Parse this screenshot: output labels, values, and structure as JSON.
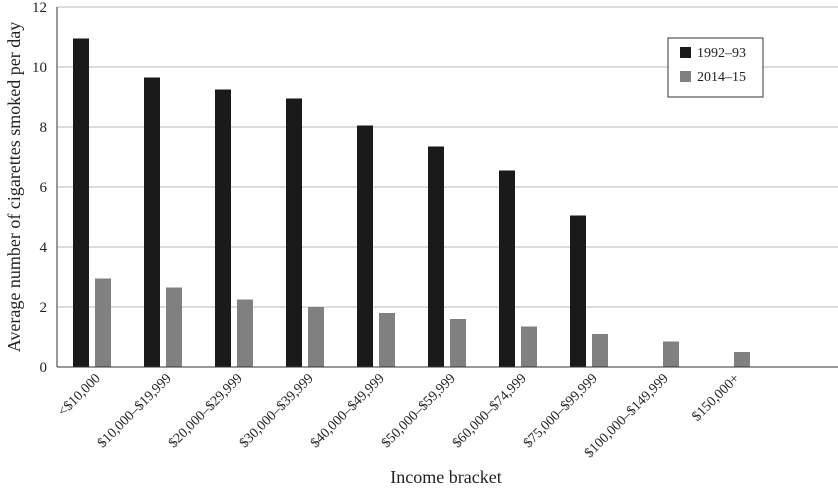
{
  "chart_data": {
    "type": "bar",
    "title": "",
    "xlabel": "Income bracket",
    "ylabel": "Average number of cigarettes smoked per day",
    "ylim": [
      0,
      12
    ],
    "yticks": [
      "0",
      "2",
      "4",
      "6",
      "8",
      "10",
      "12"
    ],
    "grid": true,
    "legend_position": "top-right",
    "categories": [
      "<$10,000",
      "$10,000–$19,999",
      "$20,000–$29,999",
      "$30,000–$39,999",
      "$40,000–$49,999",
      "$50,000–$59,999",
      "$60,000–$74,999",
      "$75,000–$99,999",
      "$100,000–$149,999",
      "$150,000+"
    ],
    "series": [
      {
        "name": "1992–93",
        "color": "#1a1a1a",
        "values": [
          10.95,
          9.65,
          9.25,
          8.95,
          8.05,
          7.35,
          6.55,
          5.05,
          null,
          null
        ]
      },
      {
        "name": "2014–15",
        "color": "#808080",
        "values": [
          2.95,
          2.65,
          2.25,
          2.0,
          1.8,
          1.6,
          1.35,
          1.1,
          0.85,
          0.5
        ]
      }
    ]
  }
}
